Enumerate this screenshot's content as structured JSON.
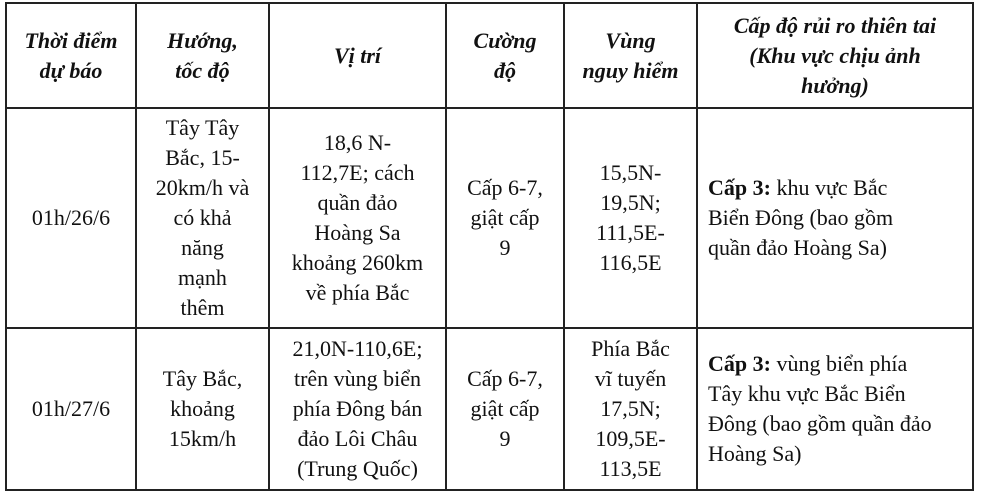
{
  "headers": [
    "Thời điểm\ndự báo",
    "Hướng,\ntốc độ",
    "Vị trí",
    "Cường\nđộ",
    "Vùng\nnguy hiểm",
    "Cấp độ rủi ro thiên tai\n(Khu vực chịu ảnh\nhưởng)"
  ],
  "rows": [
    {
      "time": "01h/26/6",
      "direction": "Tây Tây\nBắc, 15-\n20km/h và\ncó khả\nnăng\nmạnh\nthêm",
      "position": "18,6 N-\n112,7E; cách\nquần đảo\nHoàng Sa\nkhoảng 260km\nvề phía Bắc",
      "intensity": "Cấp 6-7,\ngiật cấp\n9",
      "danger_zone": "15,5N-\n19,5N;\n111,5E-\n116,5E",
      "risk_level": "Cấp 3:",
      "risk_area": " khu vực Bắc\nBiển Đông (bao gồm\nquần đảo Hoàng Sa)"
    },
    {
      "time": "01h/27/6",
      "direction": "Tây Bắc,\nkhoảng\n15km/h",
      "position": "21,0N-110,6E;\ntrên vùng biển\nphía Đông bán\nđảo Lôi Châu\n(Trung Quốc)",
      "intensity": "Cấp 6-7,\ngiật cấp\n9",
      "danger_zone": "Phía Bắc\nvĩ tuyến\n17,5N;\n109,5E-\n113,5E",
      "risk_level": "Cấp 3:",
      "risk_area": " vùng biển phía\nTây khu vực Bắc Biển\nĐông (bao gồm quần đảo\nHoàng Sa)"
    }
  ]
}
